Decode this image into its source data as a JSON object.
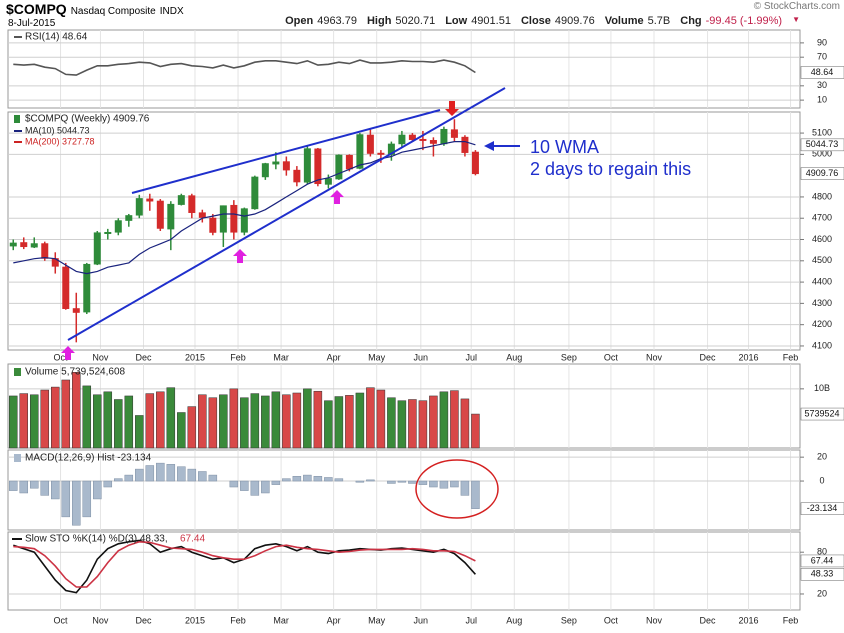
{
  "header": {
    "symbol": "$COMPQ",
    "name": "Nasdaq Composite",
    "exchange": "INDX",
    "date": "8-Jul-2015",
    "copyright": "© StockCharts.com",
    "quote": [
      [
        "Open",
        "4963.79"
      ],
      [
        "High",
        "5020.71"
      ],
      [
        "Low",
        "4901.51"
      ],
      [
        "Close",
        "4909.76"
      ],
      [
        "Volume",
        "5.7B"
      ],
      [
        "Chg",
        "-99.45 (-1.99%)"
      ]
    ]
  },
  "x_axis": {
    "xlim": [
      -0.5,
      74.9
    ],
    "xticks": [
      {
        "value": 4.5,
        "label": "Oct"
      },
      {
        "value": 8.3,
        "label": "Nov"
      },
      {
        "value": 12.4,
        "label": "Dec"
      },
      {
        "value": 17.3,
        "label": "2015"
      },
      {
        "value": 21.4,
        "label": "Feb"
      },
      {
        "value": 25.5,
        "label": "Mar"
      },
      {
        "value": 30.5,
        "label": "Apr"
      },
      {
        "value": 34.6,
        "label": "May"
      },
      {
        "value": 38.8,
        "label": "Jun"
      },
      {
        "value": 43.6,
        "label": "Jul"
      },
      {
        "value": 47.7,
        "label": "Aug"
      },
      {
        "value": 52.9,
        "label": "Sep"
      },
      {
        "value": 56.9,
        "label": "Oct"
      },
      {
        "value": 61,
        "label": "Nov"
      },
      {
        "value": 66.1,
        "label": "Dec"
      },
      {
        "value": 70,
        "label": "2016"
      },
      {
        "value": 74,
        "label": "Feb"
      }
    ]
  },
  "annotations": [
    "10 WMA",
    "2 days to regain this"
  ],
  "chart_data": [
    {
      "type": "line",
      "ylim": [
        -1,
        108
      ],
      "yticks": [
        10,
        30,
        70,
        90
      ],
      "grid": true,
      "series": [
        {
          "name": "RSI(14) 48.64",
          "color": "#555555",
          "values": [
            60,
            59,
            60,
            56,
            54,
            46,
            45,
            52,
            58,
            58,
            60,
            61,
            63,
            62,
            57,
            60,
            61,
            58,
            57,
            55,
            59,
            55,
            58,
            63,
            65,
            65,
            63,
            61,
            65,
            59,
            60,
            63,
            61,
            66,
            62,
            62,
            63,
            65,
            64,
            64,
            63,
            66,
            63,
            58,
            48.64
          ]
        }
      ]
    },
    {
      "type": "candlestick",
      "title": "$COMPQ (Weekly) 4909.76",
      "ylim": [
        4081,
        5199
      ],
      "yticks": [
        4100,
        4200,
        4300,
        4400,
        4500,
        4600,
        4700,
        4800,
        5000,
        5100
      ],
      "grid": true,
      "up_color": "#2e8b3a",
      "down_color": "#d42a2a",
      "open": [
        4570,
        4585,
        4565,
        4580,
        4510,
        4470,
        4275,
        4260,
        4485,
        4630,
        4635,
        4690,
        4715,
        4790,
        4780,
        4650,
        4765,
        4805,
        4725,
        4700,
        4635,
        4760,
        4635,
        4745,
        4895,
        4955,
        4965,
        4925,
        4870,
        5025,
        4860,
        4885,
        4995,
        4935,
        5090,
        5005,
        5000,
        5050,
        5090,
        5070,
        5065,
        5050,
        5115,
        5080,
        5010
      ],
      "high": [
        4600,
        4610,
        4610,
        4590,
        4540,
        4490,
        4350,
        4490,
        4640,
        4650,
        4700,
        4720,
        4810,
        4815,
        4790,
        4780,
        4815,
        4815,
        4740,
        4720,
        4760,
        4785,
        4750,
        4900,
        4960,
        5010,
        4990,
        4945,
        5040,
        5030,
        4905,
        5000,
        5000,
        5100,
        5120,
        5020,
        5060,
        5110,
        5100,
        5110,
        5080,
        5130,
        5165,
        5090,
        5020
      ],
      "low": [
        4550,
        4555,
        4560,
        4500,
        4440,
        4270,
        4117,
        4250,
        4480,
        4600,
        4620,
        4660,
        4700,
        4735,
        4640,
        4550,
        4760,
        4700,
        4680,
        4620,
        4565,
        4600,
        4620,
        4740,
        4880,
        4930,
        4900,
        4850,
        4860,
        4850,
        4840,
        4880,
        4920,
        4930,
        4990,
        4960,
        4970,
        5030,
        5060,
        5020,
        4990,
        5040,
        5060,
        4990,
        4901.51
      ],
      "close": [
        4583,
        4567,
        4580,
        4512,
        4475,
        4276,
        4258,
        4483,
        4631,
        4633,
        4688,
        4712,
        4792,
        4781,
        4653,
        4765,
        4806,
        4727,
        4704,
        4634,
        4758,
        4635,
        4744,
        4893,
        4956,
        4964,
        4927,
        4871,
        5026,
        4863,
        4886,
        4996,
        4932,
        5092,
        5005,
        5003,
        5048,
        5090,
        5070,
        5068,
        5052,
        5117,
        5080,
        5009,
        4909.76
      ],
      "series": [
        {
          "name": "MA(10) 5044.73",
          "color": "#1a237e",
          "values": [
            4490,
            4500,
            4510,
            4515,
            4510,
            4480,
            4450,
            4440,
            4450,
            4470,
            4480,
            4490,
            4530,
            4560,
            4580,
            4600,
            4640,
            4670,
            4700,
            4710,
            4720,
            4720,
            4710,
            4720,
            4740,
            4770,
            4800,
            4830,
            4860,
            4880,
            4890,
            4910,
            4930,
            4950,
            4960,
            4980,
            4990,
            5010,
            5020,
            5030,
            5040,
            5050,
            5060,
            5060,
            5044.73
          ]
        }
      ],
      "extra_legend": [
        {
          "name": "MA(200) 3727.78",
          "color": "#cc2222"
        }
      ]
    },
    {
      "type": "bar",
      "title": "Volume 5,739,524,608",
      "ylim": [
        0,
        14200000000.0
      ],
      "yticks": [
        {
          "value": 10000000000.0,
          "label": "10B"
        }
      ],
      "grid": true,
      "last_label": "5739524",
      "up_color": "#3a8a3a",
      "down_color": "#d84848",
      "values": [
        8800000000.0,
        9200000000.0,
        9000000000.0,
        9800000000.0,
        10300000000.0,
        11500000000.0,
        12800000000.0,
        10500000000.0,
        9000000000.0,
        9500000000.0,
        8200000000.0,
        8800000000.0,
        5500000000.0,
        9200000000.0,
        9500000000.0,
        10200000000.0,
        6000000000.0,
        7000000000.0,
        9000000000.0,
        8500000000.0,
        9000000000.0,
        10000000000.0,
        8500000000.0,
        9200000000.0,
        8800000000.0,
        9500000000.0,
        9000000000.0,
        9300000000.0,
        10000000000.0,
        9600000000.0,
        8000000000.0,
        8700000000.0,
        8900000000.0,
        9300000000.0,
        10200000000.0,
        9800000000.0,
        8500000000.0,
        8000000000.0,
        8200000000.0,
        8000000000.0,
        8800000000.0,
        9500000000.0,
        9700000000.0,
        8300000000.0,
        5739524608
      ]
    },
    {
      "type": "bar",
      "title": "MACD(12,26,9) Hist -23.134",
      "ylim": [
        -41,
        26
      ],
      "yticks": [
        20,
        0
      ],
      "grid": true,
      "color": "#a9b9cc",
      "values": [
        -8,
        -10,
        -6,
        -12,
        -15,
        -30,
        -37,
        -30,
        -15,
        -5,
        2,
        5,
        10,
        13,
        15,
        14,
        12,
        10,
        8,
        5,
        0,
        -5,
        -8,
        -12,
        -10,
        -3,
        2,
        4,
        5,
        4,
        3,
        2,
        0,
        -1,
        1,
        0,
        -2,
        -1,
        -2,
        -3,
        -5,
        -6,
        -5,
        -12,
        -23.134
      ]
    },
    {
      "type": "line",
      "title": "Slow STO %K(14) %D(3) 48.33,",
      "title_extra": "67.44",
      "ylim": [
        -3,
        109
      ],
      "yticks": [
        20,
        80
      ],
      "grid": true,
      "series": [
        {
          "color": "#111111",
          "values": [
            90,
            85,
            80,
            60,
            40,
            25,
            22,
            40,
            70,
            85,
            92,
            95,
            97,
            92,
            80,
            85,
            88,
            80,
            75,
            70,
            72,
            65,
            70,
            85,
            90,
            92,
            88,
            82,
            88,
            80,
            78,
            82,
            83,
            85,
            84,
            83,
            85,
            86,
            84,
            82,
            80,
            84,
            78,
            65,
            48.33
          ]
        },
        {
          "color": "#cc3344",
          "values": [
            88,
            87,
            85,
            75,
            60,
            42,
            30,
            30,
            45,
            65,
            82,
            90,
            95,
            94,
            90,
            86,
            85,
            84,
            80,
            75,
            72,
            70,
            70,
            75,
            82,
            88,
            90,
            87,
            85,
            84,
            82,
            80,
            81,
            83,
            84,
            84,
            84,
            84,
            85,
            84,
            82,
            82,
            81,
            75,
            67.44
          ]
        }
      ]
    }
  ]
}
